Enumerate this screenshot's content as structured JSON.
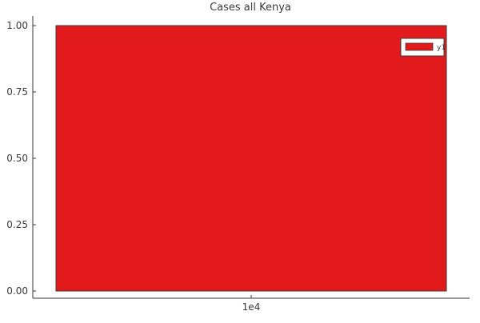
{
  "chart_data": {
    "type": "bar",
    "title": "Cases all Kenya",
    "xlabel": "",
    "ylabel": "",
    "categories": [
      "1e4"
    ],
    "series": [
      {
        "name": "y1",
        "values": [
          1.0
        ],
        "color": "#e31a1c"
      }
    ],
    "ylim": [
      0,
      1
    ],
    "yticks": [
      {
        "value": 0.0,
        "label": "0.00"
      },
      {
        "value": 0.25,
        "label": "0.25"
      },
      {
        "value": 0.5,
        "label": "0.50"
      },
      {
        "value": 0.75,
        "label": "0.75"
      },
      {
        "value": 1.0,
        "label": "1.00"
      }
    ],
    "xticks": [
      {
        "label": "1e4"
      }
    ],
    "grid": false,
    "legend": {
      "position": "top-right"
    }
  }
}
